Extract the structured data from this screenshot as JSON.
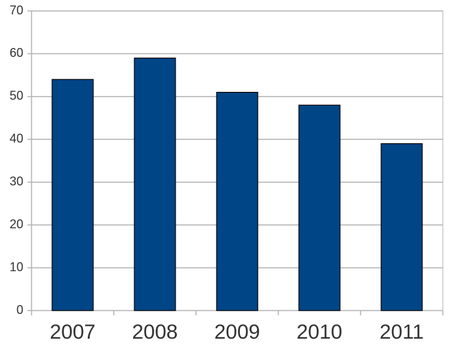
{
  "chart_data": {
    "type": "bar",
    "categories": [
      "2007",
      "2008",
      "2009",
      "2010",
      "2011"
    ],
    "values": [
      54,
      59,
      51,
      48,
      39
    ],
    "color": "#004586",
    "ylim": [
      0,
      70
    ],
    "yticks": [
      0,
      10,
      20,
      30,
      40,
      50,
      60,
      70
    ],
    "grid": true
  }
}
